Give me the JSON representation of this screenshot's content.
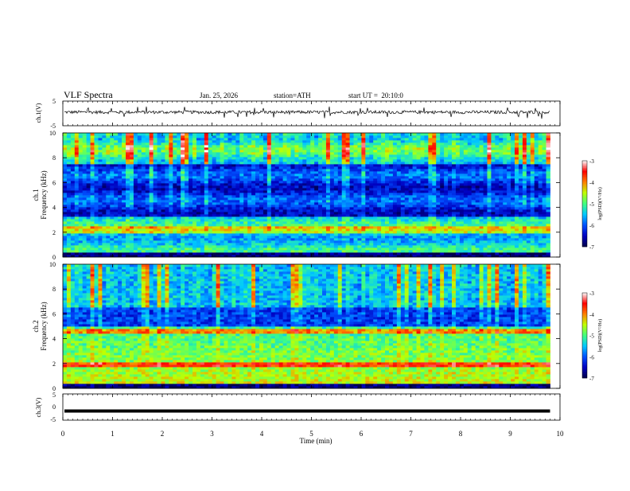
{
  "header": {
    "title": "VLF Spectra",
    "date": "Jan. 25, 2026",
    "station": "station=ATH",
    "start": "start UT =  20:10:0"
  },
  "chart_data": [
    {
      "name": "ch1-waveform",
      "type": "line",
      "ylabel": "ch.1(V)",
      "ylim": [
        -5,
        5
      ],
      "xlim": [
        0,
        10
      ],
      "x_data_range": [
        0,
        9.8
      ],
      "y_ticks": [
        "5",
        "-5"
      ],
      "baseline_level": 0.5
    },
    {
      "name": "ch1-spectrogram",
      "type": "heatmap",
      "ylabel": "Frequency (kHz)",
      "side_label": "ch.1",
      "ylim": [
        0,
        10
      ],
      "xlim": [
        0,
        10
      ],
      "x_data_range": [
        0,
        9.8
      ],
      "y_ticks": [
        "0",
        "2",
        "4",
        "6",
        "8",
        "10"
      ],
      "colorbar": {
        "label": "log(PSD)(V²/Hz)",
        "range": [
          -7,
          -3
        ],
        "ticks": [
          "-3",
          "-4",
          "-5",
          "-6",
          "-7"
        ]
      }
    },
    {
      "name": "ch2-spectrogram",
      "type": "heatmap",
      "ylabel": "Frequency (kHz)",
      "side_label": "ch.2",
      "ylim": [
        0,
        10
      ],
      "xlim": [
        0,
        10
      ],
      "x_data_range": [
        0,
        9.8
      ],
      "y_ticks": [
        "0",
        "2",
        "4",
        "6",
        "8",
        "10"
      ],
      "colorbar": {
        "label": "log(PSD)(V²/Hz)",
        "range": [
          -7,
          -3
        ],
        "ticks": [
          "-3",
          "-4",
          "-5",
          "-6",
          "-7"
        ]
      }
    },
    {
      "name": "ch3-waveform",
      "type": "line",
      "ylabel": "ch.3(V)",
      "ylim": [
        -5,
        5
      ],
      "xlim": [
        0,
        10
      ],
      "x_data_range": [
        0,
        9.8
      ],
      "y_ticks": [
        "5",
        "0",
        "-5"
      ],
      "baseline_level": -1.5
    }
  ],
  "xaxis": {
    "label": "Time (min)",
    "ticks": [
      "0",
      "1",
      "2",
      "3",
      "4",
      "5",
      "6",
      "7",
      "8",
      "9",
      "10"
    ]
  },
  "colors": {
    "colormap": [
      "#00004a",
      "#0000c0",
      "#0050ff",
      "#00c8ff",
      "#40ff80",
      "#c0ff00",
      "#ff8000",
      "#ff0000",
      "#ffffff"
    ]
  }
}
